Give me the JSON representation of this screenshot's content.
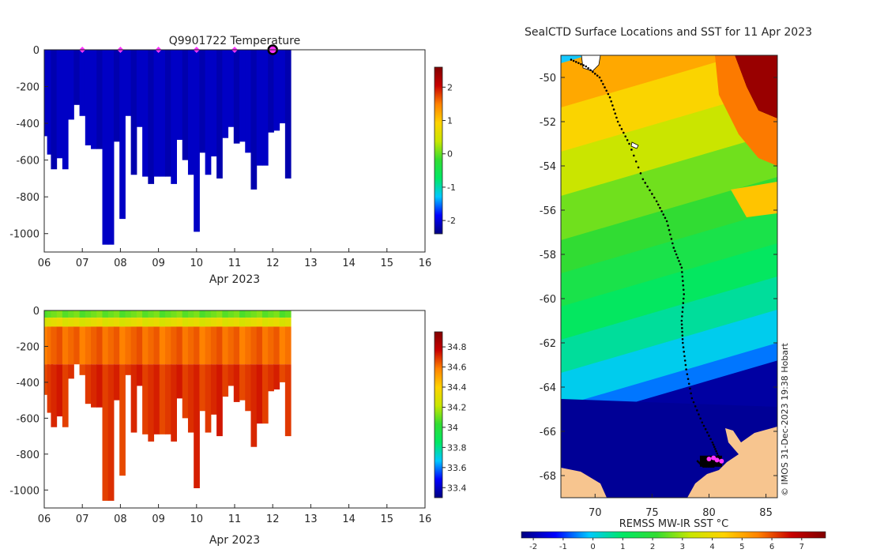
{
  "chart_data": [
    {
      "type": "heatmap",
      "title": "Q9901722  Temperature",
      "xlabel": "Apr 2023",
      "ylabel": "",
      "xlim": [
        6,
        16
      ],
      "ylim": [
        -1100,
        0
      ],
      "xticks": [
        "06",
        "07",
        "08",
        "09",
        "10",
        "11",
        "12",
        "13",
        "14",
        "15",
        "16"
      ],
      "yticks": [
        "0",
        "-200",
        "-400",
        "-600",
        "-800",
        "-1000"
      ],
      "colorbar": {
        "min": -2.4,
        "max": 2.6,
        "ticks": [
          "-2",
          "-1",
          "0",
          "1",
          "2"
        ]
      },
      "markers_days": [
        7,
        8,
        9,
        10,
        11
      ],
      "current_day": 12,
      "profiles": [
        {
          "day": 6.05,
          "depth": -470,
          "value": -2.1
        },
        {
          "day": 6.15,
          "depth": -570,
          "value": -2.1
        },
        {
          "day": 6.25,
          "depth": -650,
          "value": -2.2
        },
        {
          "day": 6.4,
          "depth": -590,
          "value": -2.1
        },
        {
          "day": 6.55,
          "depth": -650,
          "value": -2.1
        },
        {
          "day": 6.7,
          "depth": -380,
          "value": -2.1
        },
        {
          "day": 6.85,
          "depth": -300,
          "value": -2.2
        },
        {
          "day": 7.0,
          "depth": -360,
          "value": -2.1
        },
        {
          "day": 7.15,
          "depth": -520,
          "value": -2.1
        },
        {
          "day": 7.3,
          "depth": -540,
          "value": -2.1
        },
        {
          "day": 7.45,
          "depth": -540,
          "value": -2.2
        },
        {
          "day": 7.6,
          "depth": -1060,
          "value": -2.1
        },
        {
          "day": 7.75,
          "depth": -1060,
          "value": -2.1
        },
        {
          "day": 7.9,
          "depth": -500,
          "value": -2.2
        },
        {
          "day": 8.05,
          "depth": -920,
          "value": -2.1
        },
        {
          "day": 8.2,
          "depth": -360,
          "value": -2.1
        },
        {
          "day": 8.35,
          "depth": -680,
          "value": -2.2
        },
        {
          "day": 8.5,
          "depth": -420,
          "value": -2.1
        },
        {
          "day": 8.65,
          "depth": -690,
          "value": -2.1
        },
        {
          "day": 8.8,
          "depth": -730,
          "value": -2.2
        },
        {
          "day": 8.95,
          "depth": -690,
          "value": -2.1
        },
        {
          "day": 9.1,
          "depth": -690,
          "value": -2.1
        },
        {
          "day": 9.25,
          "depth": -690,
          "value": -2.2
        },
        {
          "day": 9.4,
          "depth": -730,
          "value": -2.1
        },
        {
          "day": 9.55,
          "depth": -490,
          "value": -2.1
        },
        {
          "day": 9.7,
          "depth": -600,
          "value": -2.2
        },
        {
          "day": 9.85,
          "depth": -680,
          "value": -2.1
        },
        {
          "day": 10.0,
          "depth": -990,
          "value": -2.1
        },
        {
          "day": 10.15,
          "depth": -560,
          "value": -2.2
        },
        {
          "day": 10.3,
          "depth": -680,
          "value": -2.1
        },
        {
          "day": 10.45,
          "depth": -580,
          "value": -2.1
        },
        {
          "day": 10.6,
          "depth": -700,
          "value": -2.2
        },
        {
          "day": 10.75,
          "depth": -480,
          "value": -2.1
        },
        {
          "day": 10.9,
          "depth": -420,
          "value": -2.1
        },
        {
          "day": 11.05,
          "depth": -510,
          "value": -2.2
        },
        {
          "day": 11.2,
          "depth": -500,
          "value": -2.1
        },
        {
          "day": 11.35,
          "depth": -560,
          "value": -2.1
        },
        {
          "day": 11.5,
          "depth": -760,
          "value": -2.2
        },
        {
          "day": 11.65,
          "depth": -630,
          "value": -2.1
        },
        {
          "day": 11.8,
          "depth": -630,
          "value": -2.1
        },
        {
          "day": 11.95,
          "depth": -450,
          "value": -2.2
        },
        {
          "day": 12.1,
          "depth": -440,
          "value": -2.1
        },
        {
          "day": 12.25,
          "depth": -400,
          "value": -2.1
        },
        {
          "day": 12.4,
          "depth": -700,
          "value": -2.2
        }
      ]
    },
    {
      "type": "heatmap",
      "title": "",
      "xlabel": "Apr 2023",
      "ylabel": "",
      "xlim": [
        6,
        16
      ],
      "ylim": [
        -1100,
        0
      ],
      "xticks": [
        "06",
        "07",
        "08",
        "09",
        "10",
        "11",
        "12",
        "13",
        "14",
        "15",
        "16"
      ],
      "yticks": [
        "0",
        "-200",
        "-400",
        "-600",
        "-800",
        "-1000"
      ],
      "colorbar": {
        "min": 33.3,
        "max": 34.95,
        "ticks": [
          "33.4",
          "33.6",
          "33.8",
          "34",
          "34.2",
          "34.4",
          "34.6",
          "34.8"
        ]
      },
      "layers": [
        {
          "top": 0,
          "bottom": -40,
          "value": 34.1
        },
        {
          "top": -40,
          "bottom": -90,
          "value": 34.3
        },
        {
          "top": -90,
          "bottom": -300,
          "value": 34.62
        },
        {
          "top": -300,
          "bottom": -1100,
          "value": 34.7
        }
      ]
    },
    {
      "type": "heatmap",
      "title": "SealCTD Surface Locations and SST for 11 Apr 2023",
      "xlabel": "",
      "ylabel": "",
      "xlim": [
        67,
        86
      ],
      "ylim": [
        -69,
        -49
      ],
      "xticks": [
        "70",
        "75",
        "80",
        "85"
      ],
      "yticks": [
        "-50",
        "-52",
        "-54",
        "-56",
        "-58",
        "-60",
        "-62",
        "-64",
        "-66",
        "-68"
      ],
      "credit": "© IMOS 31-Dec-2023 19:38 Hobart",
      "colorbar": {
        "label": "REMSS MW-IR SST °C",
        "min": -2.4,
        "max": 7.8,
        "ticks": [
          "-2",
          "-1",
          "0",
          "1",
          "2",
          "3",
          "4",
          "5",
          "6",
          "7"
        ]
      },
      "track": [
        {
          "lon": 67.9,
          "lat": -49.2
        },
        {
          "lon": 69.2,
          "lat": -49.5
        },
        {
          "lon": 70.4,
          "lat": -50.0
        },
        {
          "lon": 71.3,
          "lat": -50.9
        },
        {
          "lon": 72.0,
          "lat": -52.0
        },
        {
          "lon": 73.0,
          "lat": -53.0
        },
        {
          "lon": 74.2,
          "lat": -54.6
        },
        {
          "lon": 75.4,
          "lat": -55.6
        },
        {
          "lon": 76.3,
          "lat": -56.5
        },
        {
          "lon": 76.9,
          "lat": -57.7
        },
        {
          "lon": 77.6,
          "lat": -58.6
        },
        {
          "lon": 77.8,
          "lat": -59.8
        },
        {
          "lon": 77.6,
          "lat": -61.0
        },
        {
          "lon": 77.7,
          "lat": -62.0
        },
        {
          "lon": 78.0,
          "lat": -63.2
        },
        {
          "lon": 78.5,
          "lat": -64.5
        },
        {
          "lon": 79.4,
          "lat": -65.6
        },
        {
          "lon": 80.3,
          "lat": -66.5
        },
        {
          "lon": 80.8,
          "lat": -67.1
        },
        {
          "lon": 80.4,
          "lat": -67.6
        },
        {
          "lon": 79.5,
          "lat": -67.6
        },
        {
          "lon": 78.9,
          "lat": -67.3
        }
      ],
      "recent_fixes": [
        {
          "lon": 80.0,
          "lat": -67.25
        },
        {
          "lon": 80.4,
          "lat": -67.2
        },
        {
          "lon": 80.7,
          "lat": -67.3
        },
        {
          "lon": 81.1,
          "lat": -67.35
        }
      ]
    }
  ],
  "colors": {
    "jet": [
      "#000080",
      "#0000ff",
      "#00c8ff",
      "#00e864",
      "#32dc32",
      "#c8e600",
      "#ffd200",
      "#ff8200",
      "#c80000",
      "#800000"
    ],
    "ice": "#000096",
    "land": "#f7c58f",
    "marker": "#ff33ff"
  }
}
